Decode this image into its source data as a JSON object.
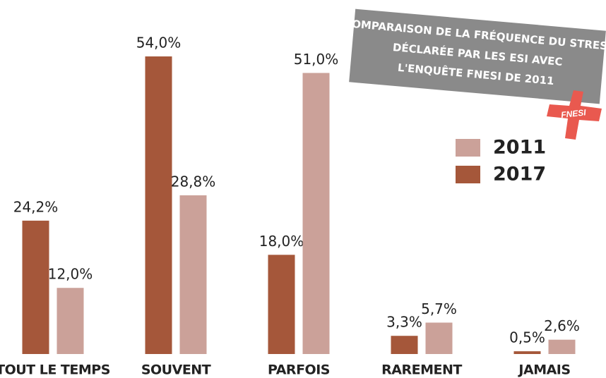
{
  "chart_data": {
    "type": "bar",
    "title": [
      "COMPARAISON DE LA FRÉQUENCE DU STRESS",
      "DÉCLARÉE PAR LES ESI AVEC",
      "L'ENQUÊTE FNESI DE 2011"
    ],
    "logo": "FNESI",
    "categories": [
      "TOUT LE TEMPS",
      "SOUVENT",
      "PARFOIS",
      "RAREMENT",
      "JAMAIS"
    ],
    "series": [
      {
        "name": "2017",
        "color": "#a5573a",
        "values": [
          24.2,
          54.0,
          18.0,
          3.3,
          0.5
        ],
        "value_labels": [
          "24,2%",
          "54,0%",
          "18,0%",
          "3,3%",
          "0,5%"
        ]
      },
      {
        "name": "2011",
        "color": "#cba199",
        "values": [
          12.0,
          28.8,
          51.0,
          5.7,
          2.6
        ],
        "value_labels": [
          "12,0%",
          "28,8%",
          "51,0%",
          "5,7%",
          "2,6%"
        ]
      }
    ]
  }
}
